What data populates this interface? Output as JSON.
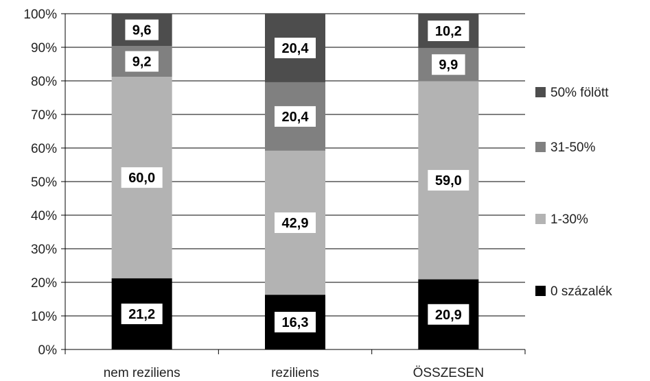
{
  "chart_data": {
    "type": "bar",
    "stacked": true,
    "percent": true,
    "categories": [
      "nem reziliens",
      "reziliens",
      "ÖSSZESEN"
    ],
    "series": [
      {
        "name": "0 százalék",
        "values": [
          21.2,
          16.3,
          20.9
        ],
        "labels": [
          "21,2",
          "16,3",
          "20,9"
        ],
        "color": "#000000"
      },
      {
        "name": "1-30%",
        "values": [
          60.0,
          42.9,
          59.0
        ],
        "labels": [
          "60,0",
          "42,9",
          "59,0"
        ],
        "color": "#b3b3b3"
      },
      {
        "name": "31-50%",
        "values": [
          9.2,
          20.4,
          9.9
        ],
        "labels": [
          "9,2",
          "20,4",
          "9,9"
        ],
        "color": "#808080"
      },
      {
        "name": "50% fölött",
        "values": [
          9.6,
          20.4,
          10.2
        ],
        "labels": [
          "9,6",
          "20,4",
          "10,2"
        ],
        "color": "#4d4d4d"
      }
    ],
    "y_ticks": [
      "0%",
      "10%",
      "20%",
      "30%",
      "40%",
      "50%",
      "60%",
      "70%",
      "80%",
      "90%",
      "100%"
    ],
    "ylim": [
      0,
      100
    ],
    "grid": true,
    "legend": "right",
    "title": "",
    "xlabel": "",
    "ylabel": ""
  }
}
